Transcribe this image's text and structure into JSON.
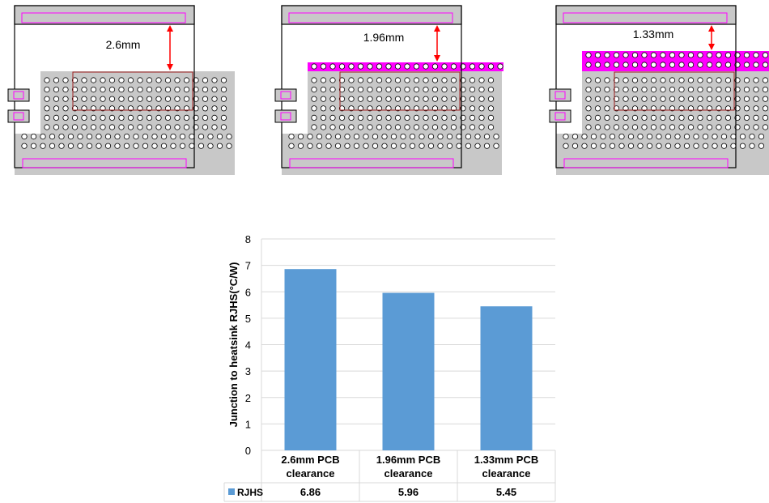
{
  "diagrams": [
    {
      "clearance_label": "2.6mm"
    },
    {
      "clearance_label": "1.96mm"
    },
    {
      "clearance_label": "1.33mm"
    }
  ],
  "colors": {
    "board": "#c8c8c8",
    "spacer": "#ff00ff",
    "arrow": "#ff0000",
    "die_outline": "#a02020",
    "bar": "#5b9bd5",
    "grid": "#d9d9d9"
  },
  "chart_data": {
    "type": "bar",
    "categories": [
      "2.6mm PCB clearance",
      "1.96mm PCB clearance",
      "1.33mm PCB clearance"
    ],
    "category_lines": [
      [
        "2.6mm PCB",
        "clearance"
      ],
      [
        "1.96mm PCB",
        "clearance"
      ],
      [
        "1.33mm PCB",
        "clearance"
      ]
    ],
    "series": [
      {
        "name": "RJHS",
        "values": [
          6.86,
          5.96,
          5.45
        ]
      }
    ],
    "data_table": [
      "6.86",
      "5.96",
      "5.45"
    ],
    "ylabel": "Junction to heatsink RJHS(°C/W)",
    "xlabel": "",
    "ylim": [
      0,
      8
    ],
    "yticks": [
      0,
      1,
      2,
      3,
      4,
      5,
      6,
      7,
      8
    ],
    "grid": true,
    "legend_placement": "data-table"
  }
}
